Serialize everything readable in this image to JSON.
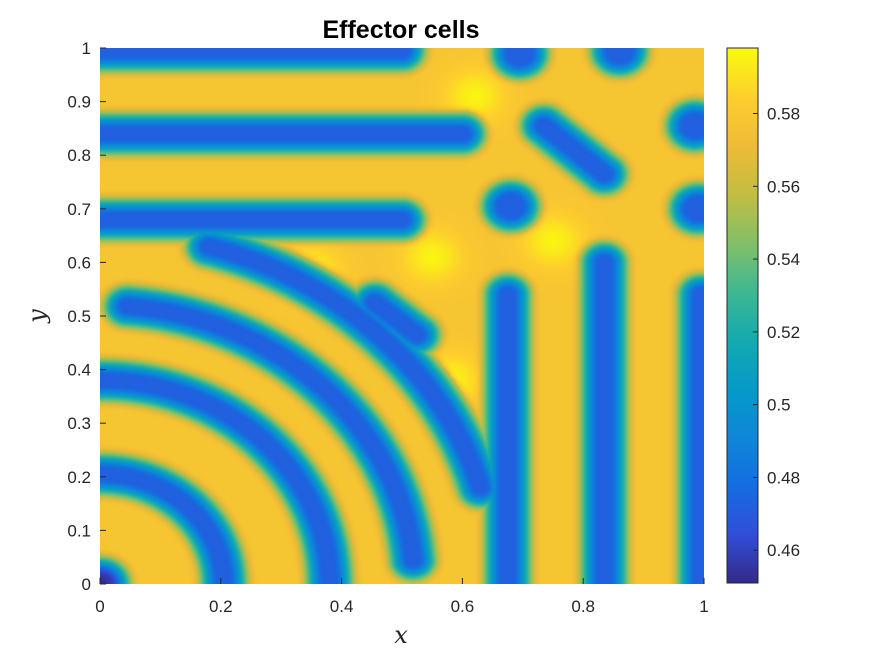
{
  "chart_data": {
    "type": "heatmap",
    "title": "Effector cells",
    "xlabel": "x",
    "ylabel": "y",
    "xlim": [
      0,
      1
    ],
    "ylim": [
      0,
      1
    ],
    "x_ticks": [
      {
        "value": 0,
        "label": "0"
      },
      {
        "value": 0.2,
        "label": "0.2"
      },
      {
        "value": 0.4,
        "label": "0.4"
      },
      {
        "value": 0.6,
        "label": "0.6"
      },
      {
        "value": 0.8,
        "label": "0.8"
      },
      {
        "value": 1,
        "label": "1"
      }
    ],
    "y_ticks": [
      {
        "value": 0,
        "label": "0"
      },
      {
        "value": 0.1,
        "label": "0.1"
      },
      {
        "value": 0.2,
        "label": "0.2"
      },
      {
        "value": 0.3,
        "label": "0.3"
      },
      {
        "value": 0.4,
        "label": "0.4"
      },
      {
        "value": 0.5,
        "label": "0.5"
      },
      {
        "value": 0.6,
        "label": "0.6"
      },
      {
        "value": 0.7,
        "label": "0.7"
      },
      {
        "value": 0.8,
        "label": "0.8"
      },
      {
        "value": 0.9,
        "label": "0.9"
      },
      {
        "value": 1,
        "label": "1"
      }
    ],
    "colorbar": {
      "colormap": "parula",
      "clim": [
        0.451,
        0.598
      ],
      "ticks": [
        {
          "value": 0.46,
          "label": "0.46"
        },
        {
          "value": 0.48,
          "label": "0.48"
        },
        {
          "value": 0.5,
          "label": "0.5"
        },
        {
          "value": 0.52,
          "label": "0.52"
        },
        {
          "value": 0.54,
          "label": "0.54"
        },
        {
          "value": 0.56,
          "label": "0.56"
        },
        {
          "value": 0.58,
          "label": "0.58"
        }
      ]
    },
    "field": {
      "background_value": 0.578,
      "low_value": 0.472,
      "peak_value": 0.596,
      "stripe_halfwidth": 0.032,
      "horizontal_stripes": [
        {
          "y": 0.995,
          "x_end": 0.5
        },
        {
          "y": 0.84,
          "x_end": 0.6
        },
        {
          "y": 0.68,
          "x_end": 0.5
        }
      ],
      "vertical_stripes": [
        {
          "x": 0.675,
          "y_end": 0.54
        },
        {
          "x": 0.835,
          "y_end": 0.6
        },
        {
          "x": 0.995,
          "y_end": 0.54
        }
      ],
      "arcs": [
        {
          "radius": 0.0,
          "angle_start": 0,
          "angle_end": 90
        },
        {
          "radius": 0.205,
          "angle_start": 0,
          "angle_end": 90
        },
        {
          "radius": 0.38,
          "angle_start": 0,
          "angle_end": 90
        },
        {
          "radius": 0.52,
          "angle_start": 5,
          "angle_end": 85
        },
        {
          "radius": 0.655,
          "angle_start": 16,
          "angle_end": 74
        }
      ],
      "spots": [
        {
          "x": 0.68,
          "y": 0.705
        },
        {
          "x": 0.695,
          "y": 0.99
        },
        {
          "x": 0.86,
          "y": 0.995
        },
        {
          "x": 0.985,
          "y": 0.855
        },
        {
          "x": 0.99,
          "y": 0.7
        }
      ],
      "diagonal_spots": [
        {
          "x1": 0.455,
          "y1": 0.525,
          "x2": 0.525,
          "y2": 0.465
        },
        {
          "x1": 0.735,
          "y1": 0.855,
          "x2": 0.835,
          "y2": 0.765
        }
      ],
      "bright_spots": [
        {
          "x": 0.35,
          "y": 0.58
        },
        {
          "x": 0.58,
          "y": 0.38
        },
        {
          "x": 0.55,
          "y": 0.61
        },
        {
          "x": 0.62,
          "y": 0.91
        },
        {
          "x": 0.75,
          "y": 0.64
        }
      ]
    }
  }
}
